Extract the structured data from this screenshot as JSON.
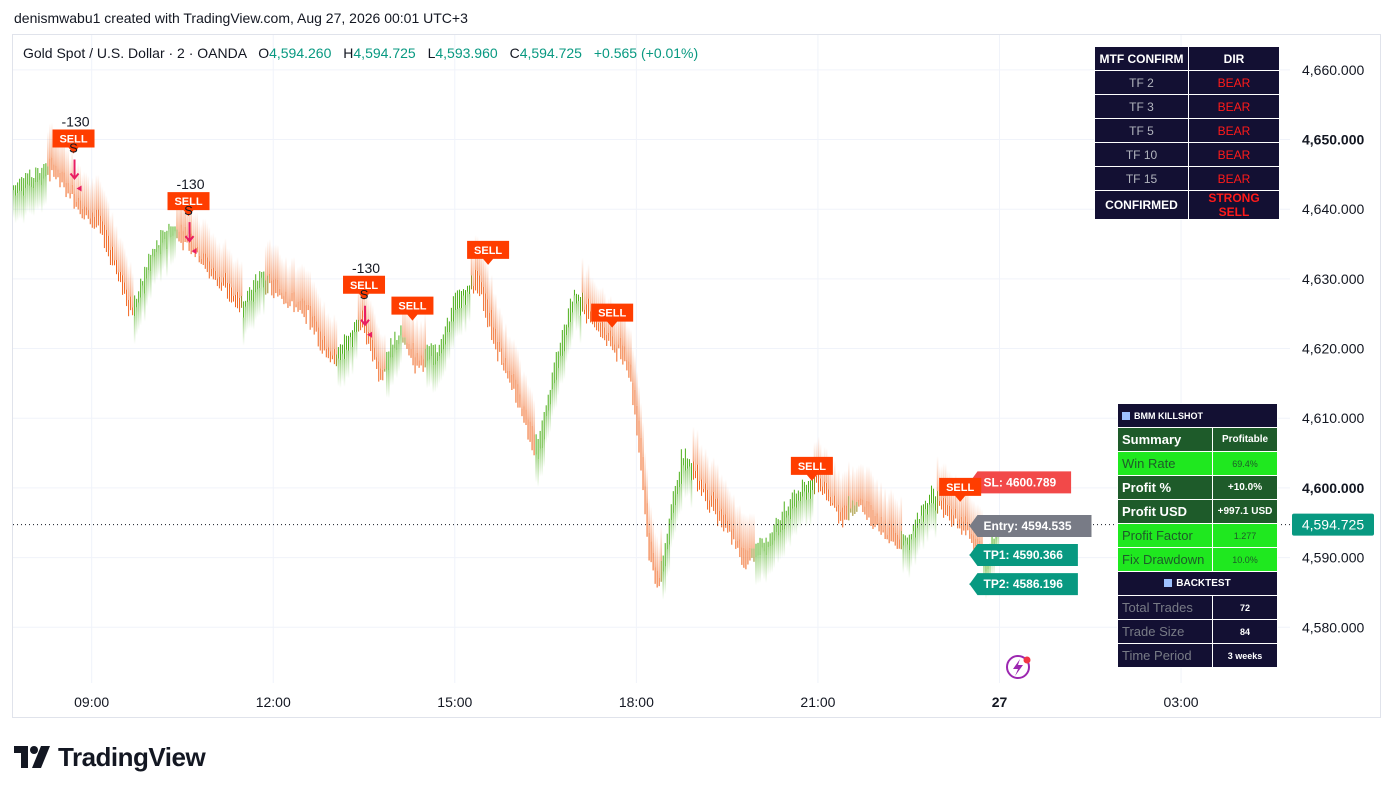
{
  "header": {
    "attribution": "denismwabu1 created with TradingView.com, Aug 27, 2026 00:01 UTC+3"
  },
  "legend": {
    "symbol": "Gold Spot / U.S. Dollar · 2 · OANDA",
    "open_label": "O",
    "open": "4,594.260",
    "high_label": "H",
    "high": "4,594.725",
    "low_label": "L",
    "low": "4,593.960",
    "close_label": "C",
    "close": "4,594.725",
    "change": "+0.565 (+0.01%)"
  },
  "colors": {
    "bull": "#4caf1a",
    "bear": "#f0651f",
    "signal": "#ff3d00",
    "teal": "#089981",
    "sl": "#f24949",
    "entry": "#787b86",
    "panel": "#131033"
  },
  "mtf_table": {
    "header": [
      "MTF CONFIRM",
      "DIR"
    ],
    "rows": [
      {
        "tf": "TF 2",
        "dir": "BEAR"
      },
      {
        "tf": "TF 3",
        "dir": "BEAR"
      },
      {
        "tf": "TF 5",
        "dir": "BEAR"
      },
      {
        "tf": "TF 10",
        "dir": "BEAR"
      },
      {
        "tf": "TF 15",
        "dir": "BEAR"
      }
    ],
    "confirm": [
      "CONFIRMED",
      "STRONG SELL"
    ]
  },
  "killshot": {
    "title": "BMM KILLSHOT",
    "summary": [
      "Summary",
      "Profitable"
    ],
    "rows": [
      {
        "label": "Win Rate",
        "value": "69.4%",
        "style": "bright"
      },
      {
        "label": "Profit %",
        "value": "+10.0%",
        "style": "dark"
      },
      {
        "label": "Profit USD",
        "value": "+997.1 USD",
        "style": "dark"
      },
      {
        "label": "Profit Factor",
        "value": "1.277",
        "style": "bright"
      },
      {
        "label": "Fix Drawdown",
        "value": "10.0%",
        "style": "bright"
      }
    ],
    "backtest": "BACKTEST",
    "backtest_rows": [
      {
        "label": "Total Trades",
        "value": "72"
      },
      {
        "label": "Trade Size",
        "value": "84"
      },
      {
        "label": "Time Period",
        "value": "3 weeks"
      }
    ]
  },
  "chart_data": {
    "type": "candlestick",
    "title": "Gold Spot / U.S. Dollar · 2 · OANDA",
    "x_ticks": [
      "09:00",
      "12:00",
      "15:00",
      "18:00",
      "21:00",
      "27",
      "03:00"
    ],
    "x_tick_hours": [
      9,
      12,
      15,
      18,
      21,
      24,
      27
    ],
    "x_range_hours": [
      7.7,
      28.8
    ],
    "ylim": [
      4572,
      4665
    ],
    "y_ticks": [
      "4,580.000",
      "4,590.000",
      "4,600.000",
      "4,610.000",
      "4,620.000",
      "4,630.000",
      "4,640.000",
      "4,650.000",
      "4,660.000"
    ],
    "y_tick_values": [
      4580,
      4590,
      4600,
      4610,
      4620,
      4630,
      4640,
      4650,
      4660
    ],
    "last_price": 4594.725,
    "last_price_label": "4,594.725",
    "price_path": [
      {
        "t": 7.7,
        "p": 4643
      },
      {
        "t": 8.4,
        "p": 4646
      },
      {
        "t": 8.85,
        "p": 4640
      },
      {
        "t": 9.15,
        "p": 4638
      },
      {
        "t": 9.45,
        "p": 4631
      },
      {
        "t": 9.7,
        "p": 4625
      },
      {
        "t": 10.0,
        "p": 4633
      },
      {
        "t": 10.3,
        "p": 4637
      },
      {
        "t": 10.6,
        "p": 4636
      },
      {
        "t": 11.0,
        "p": 4631
      },
      {
        "t": 11.5,
        "p": 4626
      },
      {
        "t": 11.8,
        "p": 4630
      },
      {
        "t": 12.3,
        "p": 4627
      },
      {
        "t": 12.6,
        "p": 4625
      },
      {
        "t": 13.0,
        "p": 4618
      },
      {
        "t": 13.5,
        "p": 4624
      },
      {
        "t": 13.8,
        "p": 4616
      },
      {
        "t": 14.1,
        "p": 4622
      },
      {
        "t": 14.4,
        "p": 4618
      },
      {
        "t": 14.8,
        "p": 4620
      },
      {
        "t": 15.0,
        "p": 4626
      },
      {
        "t": 15.4,
        "p": 4630
      },
      {
        "t": 15.7,
        "p": 4621
      },
      {
        "t": 16.1,
        "p": 4612
      },
      {
        "t": 16.4,
        "p": 4605
      },
      {
        "t": 16.6,
        "p": 4614
      },
      {
        "t": 17.0,
        "p": 4628
      },
      {
        "t": 17.3,
        "p": 4624
      },
      {
        "t": 17.6,
        "p": 4621
      },
      {
        "t": 17.9,
        "p": 4618
      },
      {
        "t": 18.1,
        "p": 4605
      },
      {
        "t": 18.25,
        "p": 4590
      },
      {
        "t": 18.4,
        "p": 4586
      },
      {
        "t": 18.6,
        "p": 4596
      },
      {
        "t": 18.8,
        "p": 4605
      },
      {
        "t": 19.1,
        "p": 4600
      },
      {
        "t": 19.4,
        "p": 4596
      },
      {
        "t": 19.8,
        "p": 4590
      },
      {
        "t": 20.2,
        "p": 4592
      },
      {
        "t": 20.6,
        "p": 4598
      },
      {
        "t": 21.0,
        "p": 4601
      },
      {
        "t": 21.4,
        "p": 4596
      },
      {
        "t": 21.7,
        "p": 4598
      },
      {
        "t": 22.1,
        "p": 4594
      },
      {
        "t": 22.5,
        "p": 4592
      },
      {
        "t": 22.9,
        "p": 4599
      },
      {
        "t": 23.2,
        "p": 4596
      },
      {
        "t": 23.5,
        "p": 4594
      },
      {
        "t": 23.8,
        "p": 4589
      },
      {
        "t": 24.0,
        "p": 4594.725
      }
    ],
    "signals": [
      {
        "label": "SELL",
        "t": 8.7,
        "p": 4648,
        "strength": "-130",
        "mark": "S"
      },
      {
        "label": "SELL",
        "t": 10.6,
        "p": 4639,
        "strength": "-130",
        "mark": "S"
      },
      {
        "label": "SELL",
        "t": 13.5,
        "p": 4627,
        "strength": "-130",
        "mark": "S"
      },
      {
        "label": "SELL",
        "t": 14.3,
        "p": 4624,
        "strength": "",
        "mark": ""
      },
      {
        "label": "SELL",
        "t": 15.55,
        "p": 4632,
        "strength": "",
        "mark": ""
      },
      {
        "label": "SELL",
        "t": 17.6,
        "p": 4623,
        "strength": "",
        "mark": ""
      },
      {
        "label": "SELL",
        "t": 20.9,
        "p": 4601,
        "strength": "",
        "mark": ""
      },
      {
        "label": "SELL",
        "t": 23.35,
        "p": 4598,
        "strength": "",
        "mark": ""
      }
    ],
    "levels": [
      {
        "label": "SL: 4600.789",
        "value": 4600.789,
        "kind": "sl"
      },
      {
        "label": "Entry: 4594.535",
        "value": 4594.535,
        "kind": "entry"
      },
      {
        "label": "TP1: 4590.366",
        "value": 4590.366,
        "kind": "tp"
      },
      {
        "label": "TP2: 4586.196",
        "value": 4586.196,
        "kind": "tp"
      }
    ]
  }
}
